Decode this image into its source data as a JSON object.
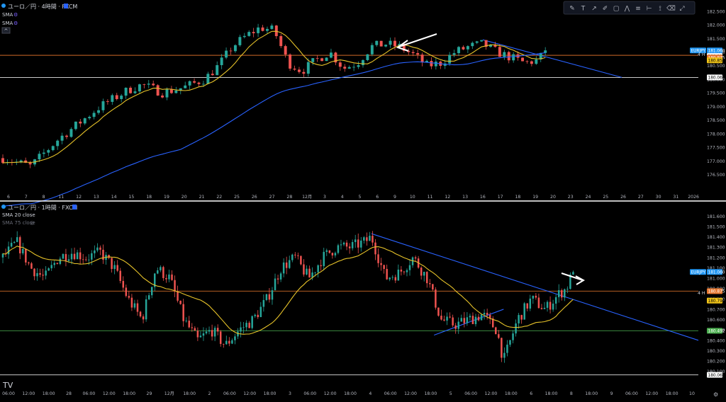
{
  "colors": {
    "background": "#000000",
    "up_candle": "#26a69a",
    "down_candle": "#ef5350",
    "sma_short": "#e6c229",
    "sma_long": "#2962ff",
    "trendline": "#2962ff",
    "orange_line": "#e6762e",
    "white_line": "#ffffff",
    "price_label_symbol": "#2196f3",
    "price_label_orange": "#e6762e",
    "price_label_yellow": "#f0c419",
    "price_label_green": "#4caf50",
    "axis_text": "#b2b5be",
    "separator": "#ffffff"
  },
  "toolbar": {
    "icons": [
      "pencil-icon",
      "text-icon",
      "path-icon",
      "brush-icon",
      "rectangle-icon",
      "zigzag-icon",
      "multi-line-icon",
      "measure-icon",
      "ruler-icon",
      "eraser-icon",
      "fullscreen-icon"
    ]
  },
  "top_pane": {
    "title": "ユーロ／円 · 4時間 · FXCM",
    "indicators": [
      "SMA",
      "SMA"
    ],
    "interval_tag": "4 H",
    "symbol_tag": "EURJPY",
    "price_labels": [
      {
        "text": "181.060",
        "style": "symbol"
      },
      {
        "text": "180.880",
        "style": "white"
      },
      {
        "text": "180.875",
        "style": "orange"
      },
      {
        "text": "180.852",
        "style": "yellow"
      },
      {
        "text": "180.066",
        "style": "white"
      }
    ],
    "y_ticks": [
      "182.500",
      "182.000",
      "181.500",
      "181.000",
      "180.500",
      "180.000",
      "179.500",
      "179.000",
      "178.500",
      "178.000",
      "177.500",
      "177.000",
      "176.500"
    ],
    "x_ticks": [
      "6",
      "7",
      "8",
      "11",
      "12",
      "13",
      "14",
      "15",
      "18",
      "19",
      "20",
      "21",
      "22",
      "25",
      "26",
      "27",
      "28",
      "12月",
      "3",
      "4",
      "5",
      "6",
      "9",
      "10",
      "11",
      "12",
      "13",
      "16",
      "17",
      "18",
      "19",
      "20",
      "23",
      "24",
      "25",
      "26",
      "27",
      "30",
      "31",
      "2026"
    ]
  },
  "bottom_pane": {
    "title": "ユーロ／円 · 1時間 · FXCM",
    "indicators": [
      "SMA 20 close",
      "SMA 75 close"
    ],
    "interval_tag": "4 H",
    "symbol_tag": "EURJPY",
    "price_labels": [
      {
        "text": "181.060",
        "style": "symbol"
      },
      {
        "text": "180.875",
        "style": "orange"
      },
      {
        "text": "180.790",
        "style": "yellow"
      },
      {
        "text": "180.492",
        "style": "green"
      },
      {
        "text": "180.066",
        "style": "white"
      }
    ],
    "y_ticks": [
      "181.600",
      "181.500",
      "181.400",
      "181.300",
      "181.200",
      "181.100",
      "181.000",
      "180.900",
      "180.800",
      "180.700",
      "180.600",
      "180.500",
      "180.400",
      "180.300",
      "180.200",
      "180.100"
    ],
    "x_ticks": [
      "06:00",
      "12:00",
      "18:00",
      "28",
      "06:00",
      "12:00",
      "18:00",
      "29",
      "12月",
      "18:00",
      "2",
      "06:00",
      "12:00",
      "18:00",
      "3",
      "06:00",
      "12:00",
      "18:00",
      "4",
      "06:00",
      "12:00",
      "18:00",
      "5",
      "06:00",
      "12:00",
      "18:00",
      "6",
      "18:00",
      "8",
      "18:00",
      "9",
      "06:00",
      "12:00",
      "18:00",
      "10"
    ]
  },
  "chart_data": [
    {
      "type": "candlestick",
      "title": "ユーロ／円 · 4時間 · FXCM",
      "ylim": [
        176.2,
        182.6
      ],
      "horizontal_lines": [
        180.88,
        180.066
      ],
      "trendline": [
        {
          "x_index": 0.69,
          "y": 181.45
        },
        {
          "x_index": 0.89,
          "y": 180.066
        }
      ],
      "series": [
        {
          "name": "SMA",
          "kind": "short"
        },
        {
          "name": "SMA",
          "kind": "long"
        }
      ],
      "anchors": [
        [
          0,
          177.1
        ],
        [
          0.02,
          176.95
        ],
        [
          0.04,
          176.8
        ],
        [
          0.06,
          177.3
        ],
        [
          0.08,
          177.8
        ],
        [
          0.1,
          178.2
        ],
        [
          0.12,
          178.6
        ],
        [
          0.14,
          179.0
        ],
        [
          0.16,
          179.3
        ],
        [
          0.18,
          179.6
        ],
        [
          0.2,
          179.8
        ],
        [
          0.23,
          179.5
        ],
        [
          0.26,
          179.7
        ],
        [
          0.29,
          180.0
        ],
        [
          0.31,
          180.5
        ],
        [
          0.33,
          181.2
        ],
        [
          0.35,
          181.6
        ],
        [
          0.37,
          181.9
        ],
        [
          0.39,
          181.8
        ],
        [
          0.41,
          180.6
        ],
        [
          0.43,
          180.3
        ],
        [
          0.45,
          180.7
        ],
        [
          0.47,
          181.0
        ],
        [
          0.49,
          180.4
        ],
        [
          0.51,
          180.6
        ],
        [
          0.53,
          181.2
        ],
        [
          0.55,
          181.3
        ],
        [
          0.57,
          181.2
        ],
        [
          0.59,
          180.9
        ],
        [
          0.61,
          180.5
        ],
        [
          0.63,
          180.6
        ],
        [
          0.65,
          181.0
        ],
        [
          0.67,
          181.2
        ],
        [
          0.69,
          181.3
        ],
        [
          0.71,
          181.0
        ],
        [
          0.73,
          180.8
        ],
        [
          0.75,
          180.6
        ],
        [
          0.77,
          180.7
        ],
        [
          0.78,
          181.06
        ]
      ],
      "last_x_index": 0.78
    },
    {
      "type": "candlestick",
      "title": "ユーロ／円 · 1時間 · FXCM",
      "ylim": [
        180.05,
        181.65
      ],
      "horizontal_lines": [
        180.875,
        180.492,
        180.066
      ],
      "trendlines": [
        [
          {
            "x_index": 0.53,
            "y": 181.43
          },
          {
            "x_index": 1.0,
            "y": 180.4
          }
        ],
        [
          {
            "x_index": 0.62,
            "y": 180.45
          },
          {
            "x_index": 0.72,
            "y": 180.7
          }
        ]
      ],
      "series": [
        {
          "name": "SMA 20 close",
          "kind": "short"
        },
        {
          "name": "SMA 75 close",
          "kind": "hidden"
        }
      ],
      "anchors": [
        [
          0,
          181.2
        ],
        [
          0.02,
          181.35
        ],
        [
          0.04,
          181.1
        ],
        [
          0.06,
          181.0
        ],
        [
          0.08,
          181.2
        ],
        [
          0.1,
          181.25
        ],
        [
          0.12,
          181.2
        ],
        [
          0.14,
          181.25
        ],
        [
          0.16,
          181.1
        ],
        [
          0.18,
          180.8
        ],
        [
          0.2,
          180.6
        ],
        [
          0.22,
          181.1
        ],
        [
          0.24,
          181.0
        ],
        [
          0.26,
          180.6
        ],
        [
          0.28,
          180.4
        ],
        [
          0.3,
          180.5
        ],
        [
          0.32,
          180.35
        ],
        [
          0.34,
          180.5
        ],
        [
          0.36,
          180.6
        ],
        [
          0.38,
          180.8
        ],
        [
          0.4,
          181.1
        ],
        [
          0.42,
          181.2
        ],
        [
          0.44,
          181.0
        ],
        [
          0.46,
          181.2
        ],
        [
          0.48,
          181.3
        ],
        [
          0.5,
          181.3
        ],
        [
          0.52,
          181.35
        ],
        [
          0.53,
          181.4
        ],
        [
          0.55,
          181.0
        ],
        [
          0.57,
          181.05
        ],
        [
          0.59,
          181.2
        ],
        [
          0.61,
          181.0
        ],
        [
          0.63,
          180.6
        ],
        [
          0.65,
          180.55
        ],
        [
          0.67,
          180.6
        ],
        [
          0.69,
          180.65
        ],
        [
          0.71,
          180.5
        ],
        [
          0.72,
          180.2
        ],
        [
          0.74,
          180.6
        ],
        [
          0.76,
          180.8
        ],
        [
          0.78,
          180.7
        ],
        [
          0.8,
          180.85
        ],
        [
          0.81,
          180.9
        ],
        [
          0.82,
          181.06
        ]
      ],
      "last_x_index": 0.82
    }
  ]
}
